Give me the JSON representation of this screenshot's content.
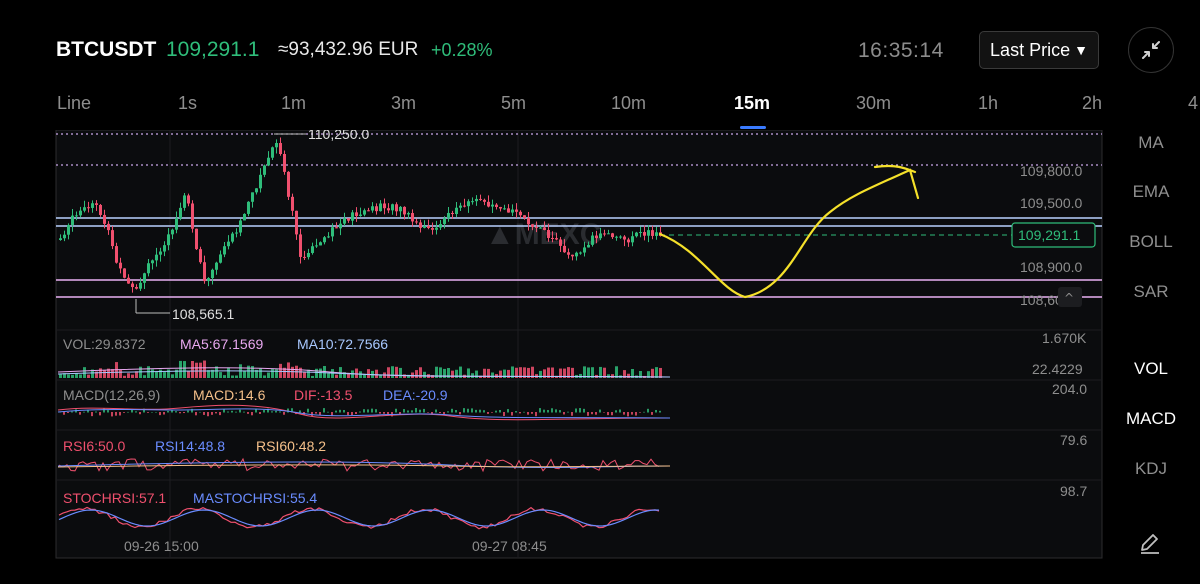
{
  "header": {
    "symbol": "BTCUSDT",
    "price": "109,291.1",
    "eur": "≈93,432.96 EUR",
    "change": "+0.28%",
    "clock": "16:35:14",
    "price_source": "Last Price"
  },
  "tabs": [
    "Line",
    "1s",
    "1m",
    "3m",
    "5m",
    "10m",
    "15m",
    "30m",
    "1h",
    "2h",
    "4"
  ],
  "active_tab": "15m",
  "indicators_top": [
    "MA",
    "EMA",
    "BOLL",
    "SAR"
  ],
  "indicators_bottom": [
    "VOL",
    "MACD",
    "KDJ"
  ],
  "chart": {
    "high_label": "110,250.0",
    "low_label": "108,565.1",
    "current_price": "109,291.1",
    "price_axis": [
      "109,800.0",
      "109,500.0",
      "108,900.0",
      "108,600.0"
    ],
    "vol": {
      "vol": "VOL:29.8372",
      "ma5": "MA5:67.1569",
      "ma10": "MA10:72.7566",
      "axis_top": "1.670K",
      "axis_bottom": "22.4229"
    },
    "macd": {
      "name": "MACD(12,26,9)",
      "macd": "MACD:14.6",
      "dif": "DIF:-13.5",
      "dea": "DEA:-20.9",
      "axis": "204.0"
    },
    "rsi": {
      "rsi6": "RSI6:50.0",
      "rsi14": "RSI14:48.8",
      "rsi60": "RSI60:48.2",
      "axis": "79.6"
    },
    "stoch": {
      "stochrsi": "STOCHRSI:57.1",
      "mastochrsi": "MASTOCHRSI:55.4",
      "axis": "98.7"
    },
    "time_labels": [
      "09-26 15:00",
      "09-27 08:45"
    ]
  },
  "colors": {
    "up": "#2fbd7a",
    "down": "#f0506e",
    "accent": "#3a7bff",
    "drawing": "#f5e12a"
  }
}
